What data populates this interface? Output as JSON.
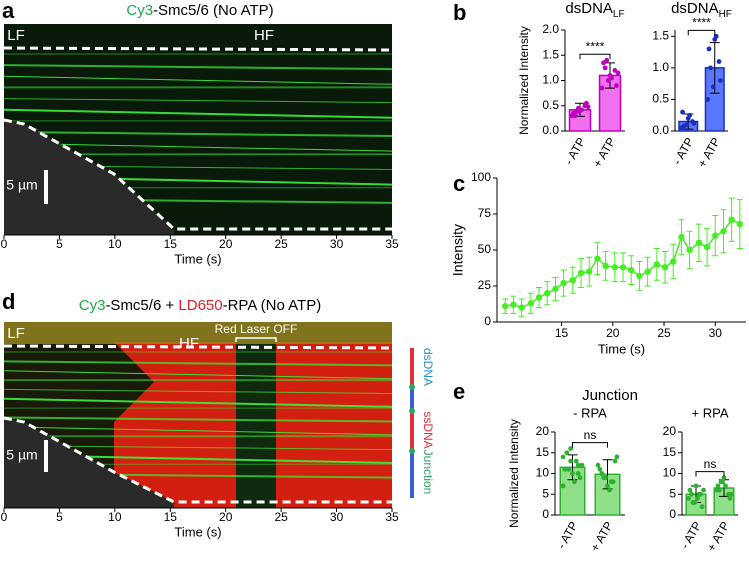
{
  "chart_data": [
    {
      "type": "kymograph",
      "panel_label": "a",
      "title_parts": [
        {
          "text": "Cy3",
          "color": "#1fa84a"
        },
        {
          "text": "-Smc5/6 (No ATP)",
          "color": "#000000"
        }
      ],
      "annotations": [
        "LF",
        "HF"
      ],
      "scale_bar": "5 µm",
      "xlim": [
        0,
        35
      ],
      "xticks": [
        0,
        5,
        10,
        15,
        20,
        25,
        30,
        35
      ],
      "x_label": "Time (s)"
    },
    {
      "type": "bar",
      "panel_label": "b",
      "title": "dsDNA",
      "title_sub": "LF",
      "color": "#f070f0",
      "edge": "#c000c0",
      "categories": [
        "- ATP",
        "+ ATP"
      ],
      "values": [
        0.42,
        1.1
      ],
      "errors": [
        0.13,
        0.25
      ],
      "points": [
        [
          0.3,
          0.45,
          0.5,
          0.35,
          0.4,
          0.55,
          0.3,
          0.42,
          0.48,
          0.38
        ],
        [
          0.85,
          1.0,
          1.2,
          1.35,
          1.1,
          0.9,
          1.25,
          1.05,
          1.15,
          1.4
        ]
      ],
      "ylim": [
        0,
        2
      ],
      "yticks": [
        {
          "value": 0,
          "label": "0.0"
        },
        {
          "value": 0.5,
          "label": "0.5"
        },
        {
          "value": 1,
          "label": "1.0"
        },
        {
          "value": 1.5,
          "label": "1.5"
        },
        {
          "value": 2,
          "label": "2.0"
        }
      ],
      "y_label": "Normalized Intensity",
      "significance": "****"
    },
    {
      "type": "bar",
      "title": "dsDNA",
      "title_sub": "HF",
      "color": "#5a78ff",
      "edge": "#1a2fc0",
      "categories": [
        "- ATP",
        "+ ATP"
      ],
      "values": [
        0.15,
        1.0
      ],
      "errors": [
        0.12,
        0.4
      ],
      "points": [
        [
          0.05,
          0.1,
          0.15,
          0.3,
          0.2,
          0.12,
          0.08,
          0.25
        ],
        [
          0.5,
          0.7,
          1.1,
          1.3,
          1.45,
          0.8,
          1.0,
          1.5
        ]
      ],
      "ylim": [
        0,
        1.6
      ],
      "yticks": [
        {
          "value": 0,
          "label": "0.0"
        },
        {
          "value": 0.5,
          "label": "0.5"
        },
        {
          "value": 1,
          "label": "1.0"
        },
        {
          "value": 1.5,
          "label": "1.5"
        }
      ],
      "significance": "****"
    },
    {
      "type": "line",
      "panel_label": "c",
      "color": "#44ee22",
      "x": [
        9.5,
        10.3,
        11.1,
        12.0,
        12.8,
        13.6,
        14.4,
        15.2,
        16.1,
        16.9,
        17.7,
        18.5,
        19.3,
        20.2,
        21.0,
        21.8,
        22.6,
        23.4,
        24.3,
        25.1,
        25.9,
        26.7,
        27.5,
        28.4,
        29.2,
        30.0,
        30.8,
        31.6,
        32.4
      ],
      "values": [
        11,
        12,
        10,
        13,
        17,
        20,
        23,
        27,
        29,
        34,
        35,
        44,
        39,
        38,
        38,
        36,
        32,
        35,
        40,
        38,
        42,
        59,
        50,
        55,
        52,
        60,
        63,
        71,
        68
      ],
      "errors": [
        5,
        6,
        6,
        7,
        7,
        8,
        8,
        9,
        9,
        10,
        10,
        11,
        10,
        10,
        10,
        10,
        10,
        10,
        11,
        11,
        12,
        12,
        13,
        13,
        13,
        14,
        15,
        15,
        17
      ],
      "xlim": [
        8.7,
        33
      ],
      "xticks": [
        15,
        20,
        25,
        30
      ],
      "ylim": [
        0,
        100
      ],
      "yticks": [
        0,
        25,
        50,
        75,
        100
      ],
      "x_label": "Time (s)",
      "y_label": "Intensity"
    },
    {
      "type": "kymograph",
      "panel_label": "d",
      "title_parts": [
        {
          "text": "Cy3",
          "color": "#1fa84a"
        },
        {
          "text": "-Smc5/6 + ",
          "color": "#000000"
        },
        {
          "text": "LD650",
          "color": "#e0202a"
        },
        {
          "text": "-RPA (No ATP)",
          "color": "#000000"
        }
      ],
      "annotations": [
        "LF",
        "HF",
        "Red Laser OFF"
      ],
      "scale_bar": "5 µm",
      "side_labels": [
        {
          "text": "dsDNA",
          "color": "#2b8fc9"
        },
        {
          "text": "ssDNA",
          "color": "#e0303a"
        },
        {
          "text": "Junction",
          "color": "#2aa860"
        }
      ],
      "xlim": [
        0,
        35
      ],
      "xticks": [
        0,
        5,
        10,
        15,
        20,
        25,
        30,
        35
      ],
      "x_label": "Time (s)"
    },
    {
      "type": "bar",
      "panel_label": "e",
      "title": "Junction",
      "subtitle": "- RPA",
      "color": "#90e08a",
      "edge": "#2fb030",
      "categories": [
        "- ATP",
        "+ ATP"
      ],
      "values": [
        11.5,
        9.8
      ],
      "errors": [
        3,
        3.5
      ],
      "points": [
        [
          14,
          13,
          12,
          11,
          10,
          9,
          15,
          8,
          12,
          11,
          13,
          7,
          16,
          10
        ],
        [
          12,
          9,
          8,
          11,
          7,
          13,
          10,
          6,
          14,
          9,
          8
        ]
      ],
      "ylim": [
        0,
        20
      ],
      "yticks": [
        0,
        5,
        10,
        15,
        20
      ],
      "y_label": "Normalized Intensity",
      "significance": "ns"
    },
    {
      "type": "bar",
      "subtitle": "+ RPA",
      "color": "#90e08a",
      "edge": "#2fb030",
      "categories": [
        "- ATP",
        "+ ATP"
      ],
      "values": [
        5,
        6.5
      ],
      "errors": [
        2,
        2
      ],
      "points": [
        [
          4,
          3,
          5,
          6,
          7,
          2,
          5,
          4,
          6,
          3,
          5
        ],
        [
          6,
          8,
          5,
          7,
          9,
          4,
          6,
          7,
          5,
          8
        ]
      ],
      "ylim": [
        0,
        20
      ],
      "yticks": [
        0,
        5,
        10,
        15,
        20
      ],
      "significance": "ns"
    }
  ]
}
